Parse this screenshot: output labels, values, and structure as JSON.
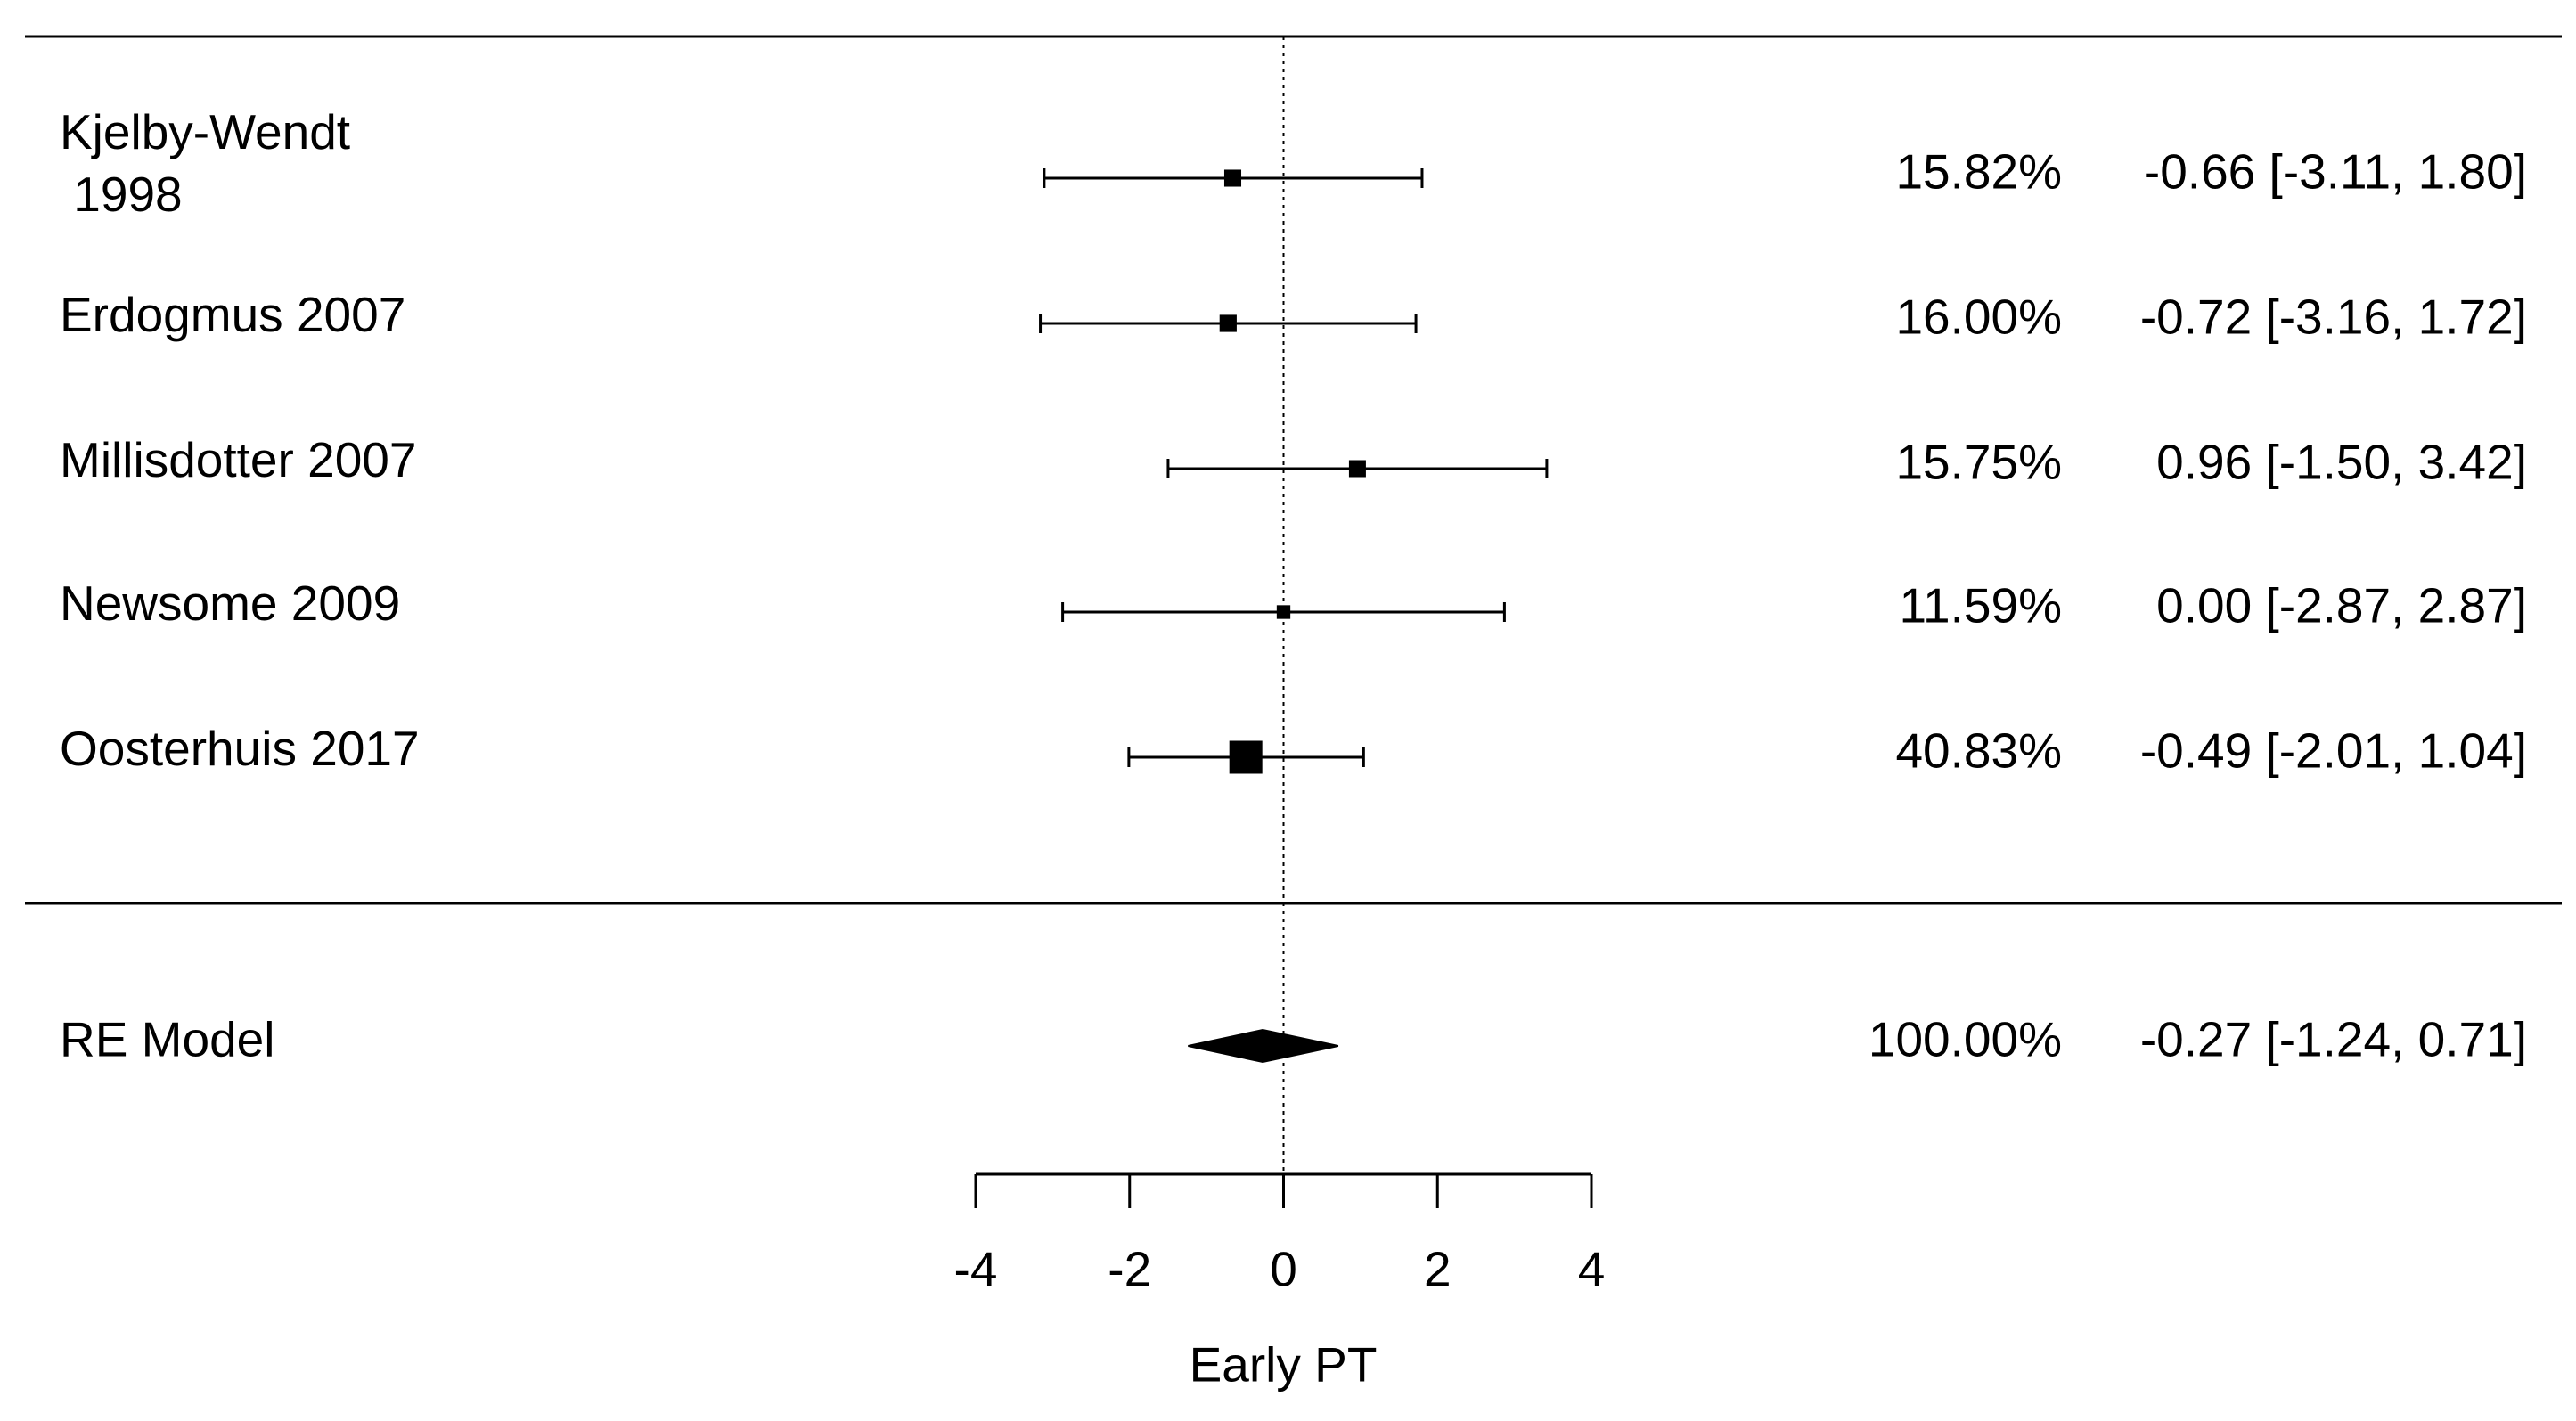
{
  "chart_data": {
    "type": "forest",
    "categories": [
      "Kjelby-Wendt\n 1998",
      "Erdogmus 2007",
      "Millisdotter 2007",
      "Newsome 2009",
      "Oosterhuis 2017"
    ],
    "estimates": [
      -0.66,
      -0.72,
      0.96,
      0.0,
      -0.49
    ],
    "ci_lower": [
      -3.11,
      -3.16,
      -1.5,
      -2.87,
      -2.01
    ],
    "ci_upper": [
      1.8,
      1.72,
      3.42,
      2.87,
      1.04
    ],
    "weights": [
      15.82,
      16.0,
      15.75,
      11.59,
      40.83
    ],
    "weight_labels": [
      "15.82%",
      "16.00%",
      "15.75%",
      "11.59%",
      "40.83%"
    ],
    "value_labels": [
      "-0.66 [-3.11, 1.80]",
      "-0.72 [-3.16, 1.72]",
      "0.96 [-1.50, 3.42]",
      "0.00 [-2.87, 2.87]",
      "-0.49 [-2.01, 1.04]"
    ],
    "summary": {
      "name": "RE Model",
      "estimate": -0.27,
      "ci_lower": -1.24,
      "ci_upper": 0.71,
      "weight": 100.0,
      "weight_label": "100.00%",
      "value_label": "-0.27 [-1.24, 0.71]"
    },
    "xlabel": "Early PT",
    "xlim": [
      -4,
      4
    ],
    "xticks": [
      -4,
      -2,
      0,
      2,
      4
    ],
    "reference_line": 0,
    "color": "#000000"
  }
}
